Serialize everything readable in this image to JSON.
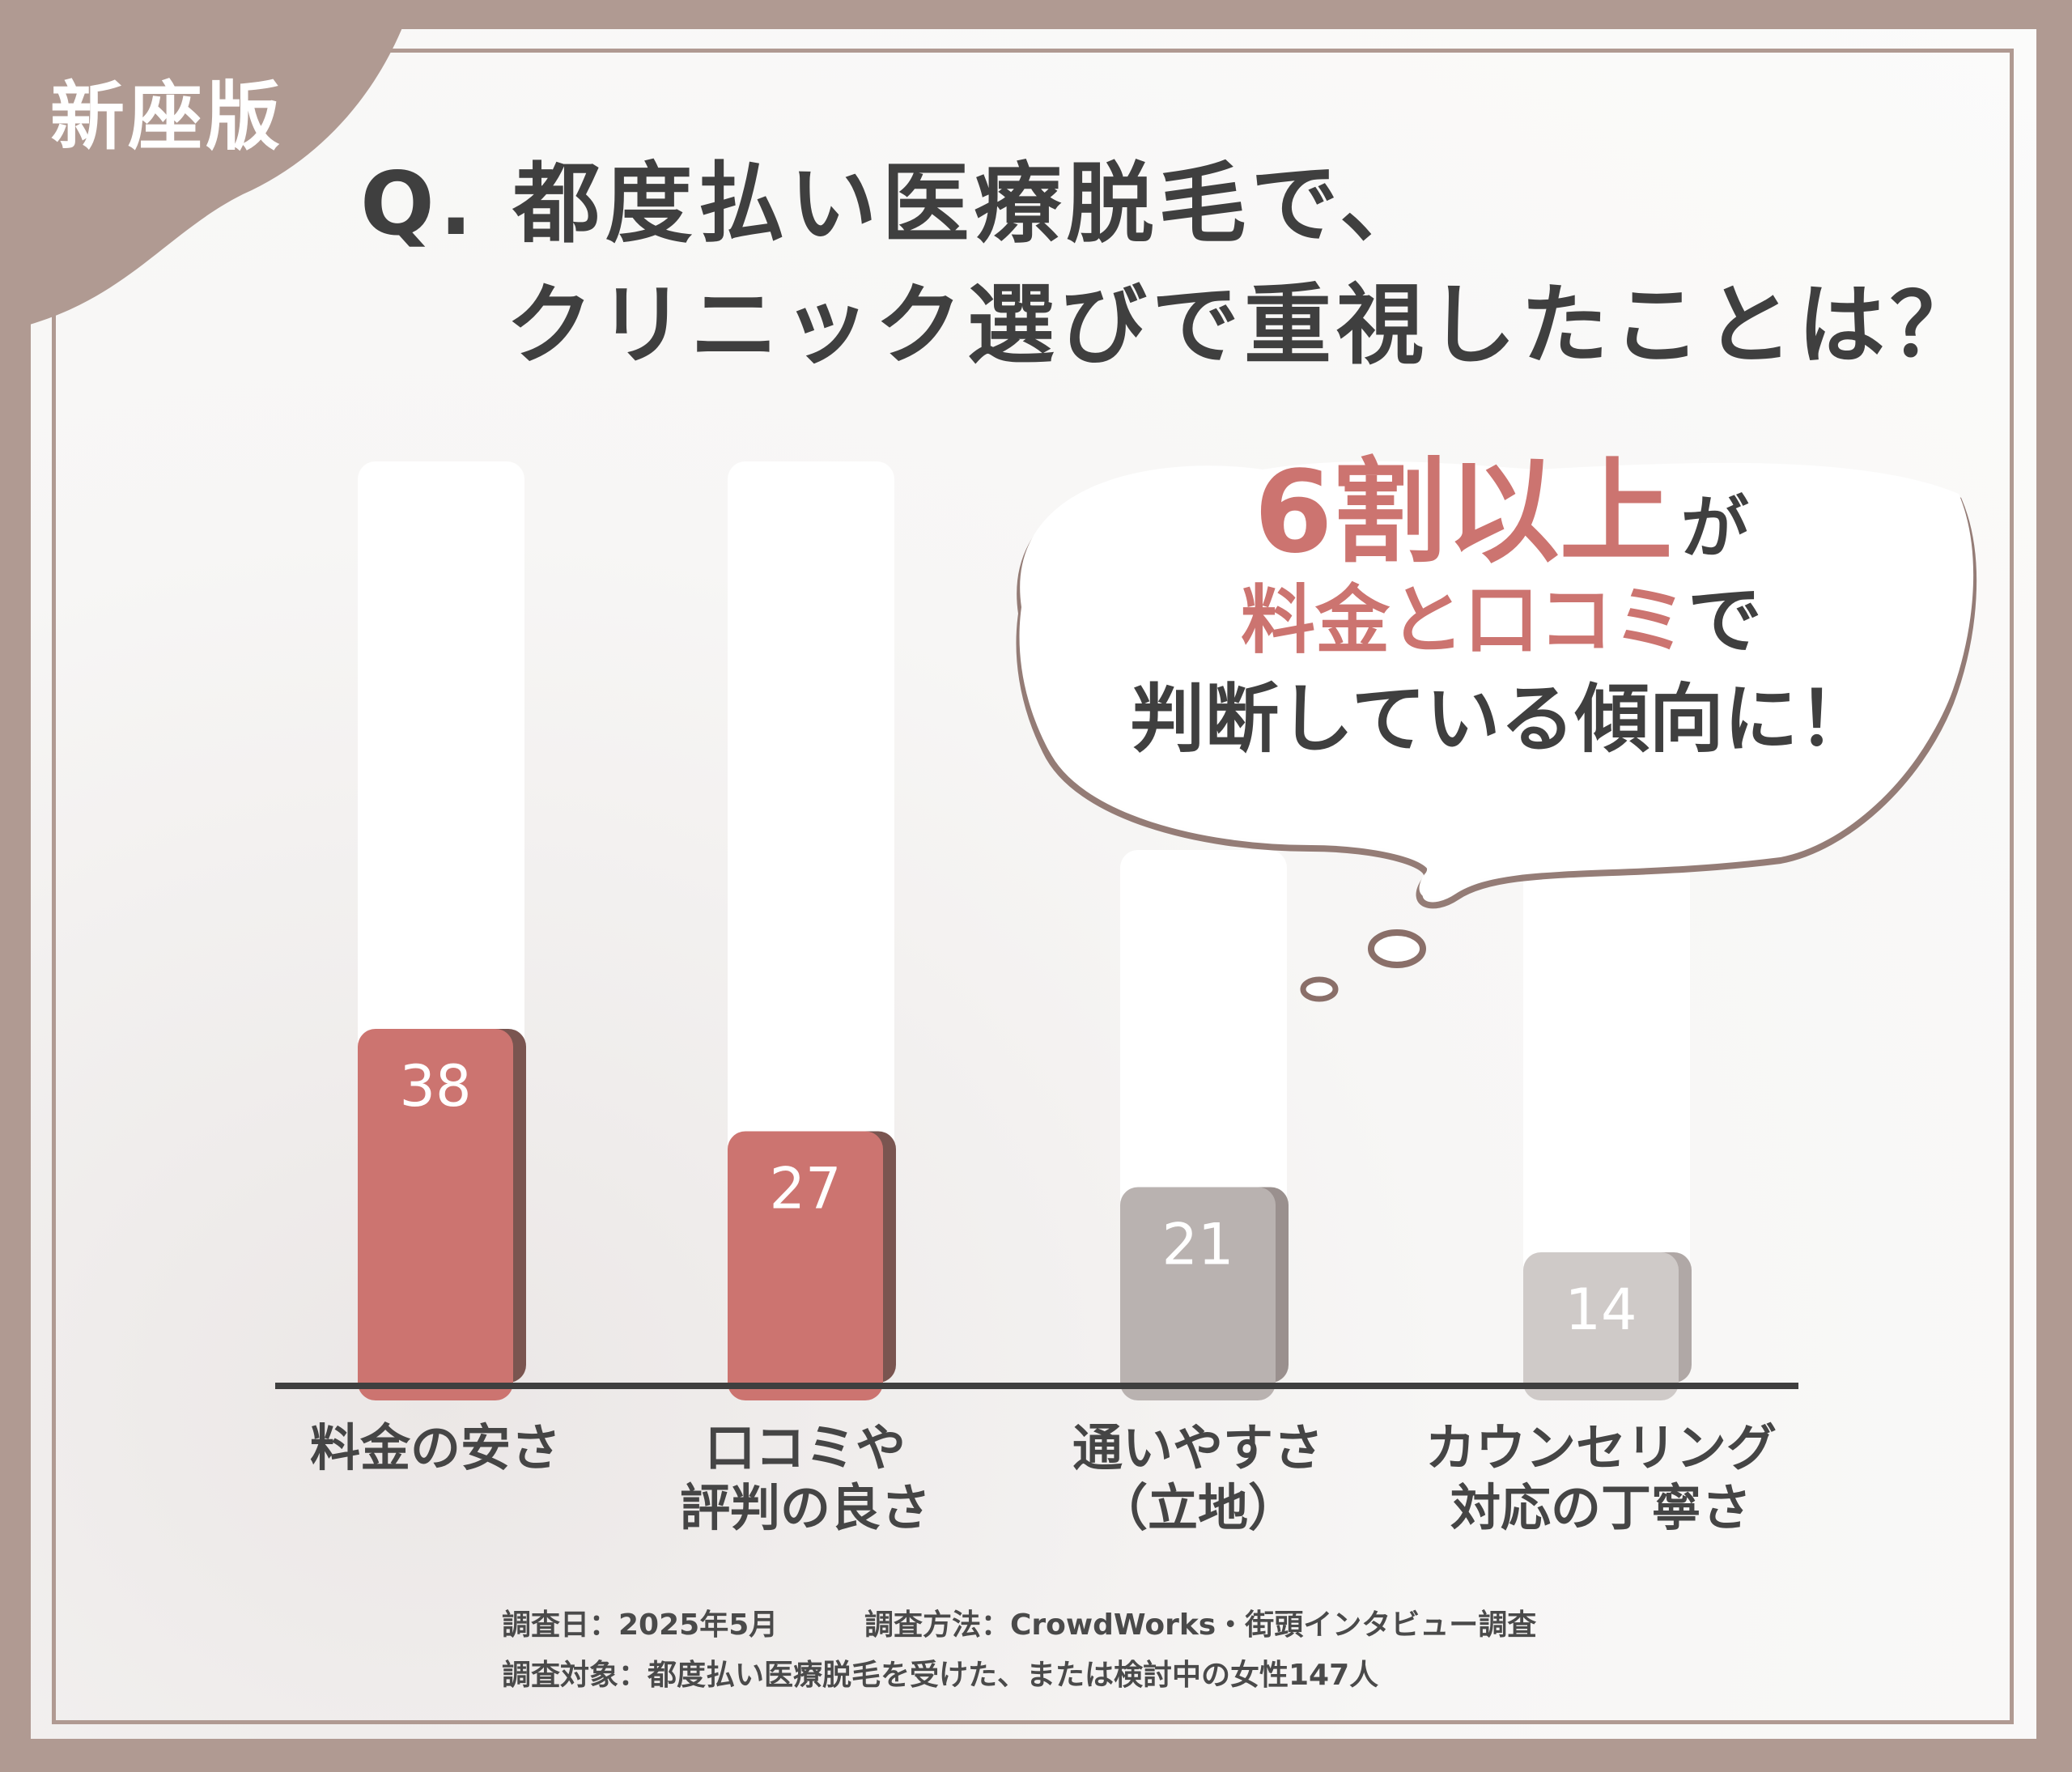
{
  "badge": "新座版",
  "question": {
    "line1": "Q. 都度払い医療脱毛で、",
    "line2": "クリニック選びで重視したことは？"
  },
  "bubble": {
    "headline": "6割以上",
    "headline_suffix": "が",
    "line2_highlight": "料金と口コミ",
    "line2_suffix": "で",
    "line3": "判断している傾向に！"
  },
  "colors": {
    "background": "#b09a92",
    "highlight_bar": "#cc7470",
    "muted_bar": "#b9b2b0",
    "light_bar": "#cfcac8",
    "text": "#3f3f3f"
  },
  "chart_data": {
    "type": "bar",
    "categories": [
      "料金の安さ",
      "口コミや\n評判の良さ",
      "通いやすさ\n（立地）",
      "カウンセリング\n対応の丁寧さ"
    ],
    "values": [
      38,
      27,
      21,
      14
    ],
    "ylim": [
      0,
      100
    ],
    "grid": false,
    "legend": "none"
  },
  "notes": {
    "date": "調査日：2025年5月",
    "method": "調査方法：CrowdWorks・街頭インタビュー調査",
    "target": "調査対象：都度払い医療脱毛を受けた、または検討中の女性147人"
  }
}
